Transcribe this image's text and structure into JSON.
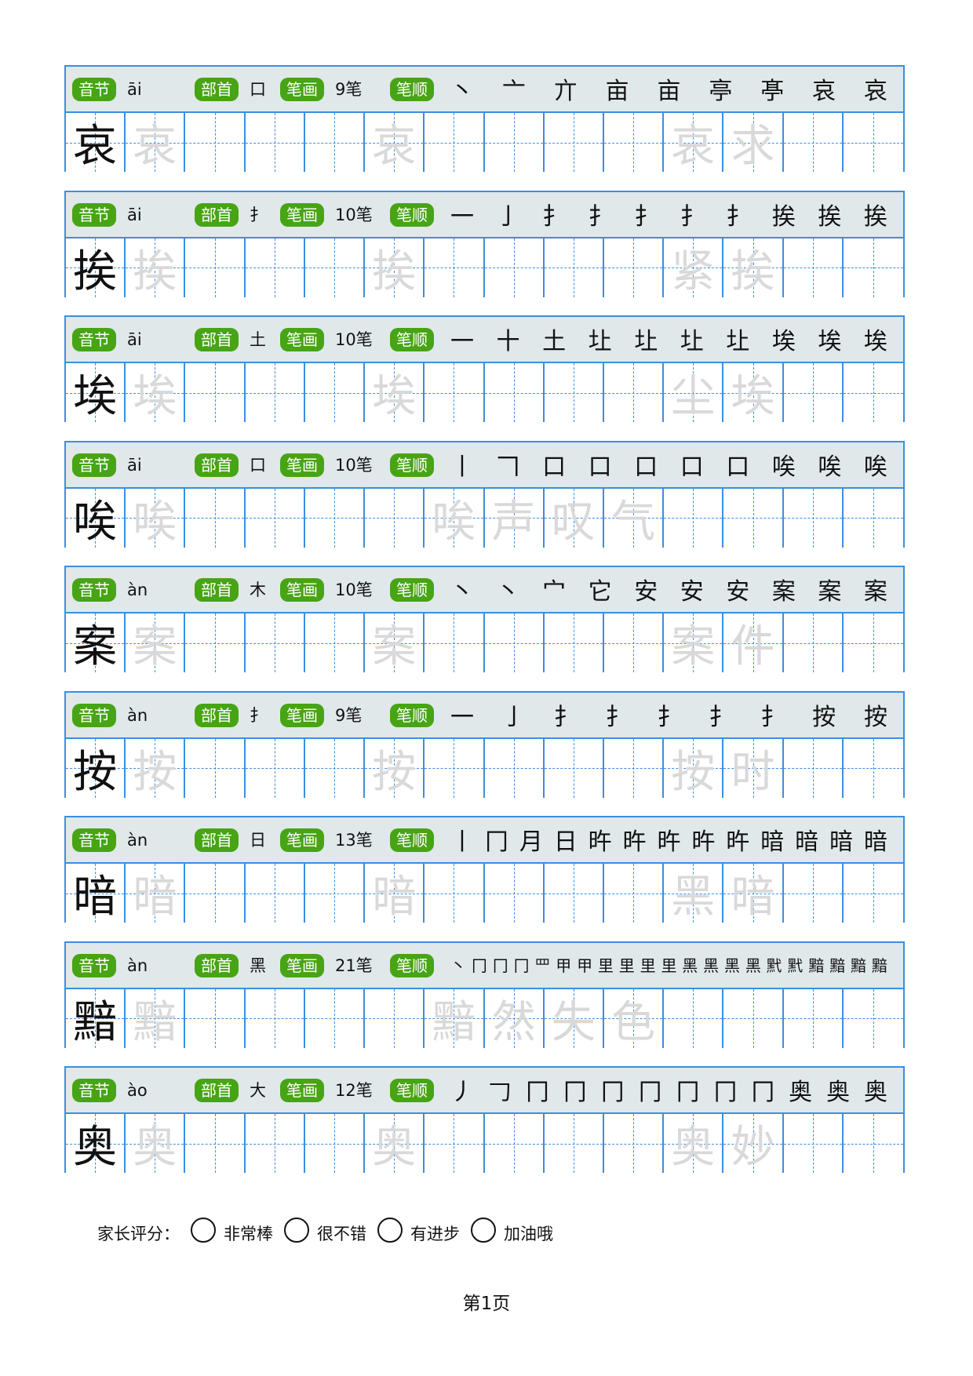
{
  "labels": {
    "syllable": "音节",
    "radical": "部首",
    "stroke_count": "笔画",
    "stroke_order": "笔顺"
  },
  "colors": {
    "pill": "#47a414",
    "grid": "#3c8ee0",
    "header_bg": "#e0e8ea",
    "trace": "#d9d9d9"
  },
  "rows": [
    {
      "char": "哀",
      "pinyin": "āi",
      "radical": "口",
      "strokes": "9笔",
      "order": [
        "丶",
        "亠",
        "亣",
        "亩",
        "亩",
        "亭",
        "𠅘",
        "哀",
        "哀"
      ],
      "cells": {
        "1": "哀",
        "5": "哀",
        "10": "哀",
        "11": "求"
      }
    },
    {
      "char": "挨",
      "pinyin": "āi",
      "radical": "扌",
      "strokes": "10笔",
      "order": [
        "一",
        "亅",
        "扌",
        "扌",
        "扌",
        "扌",
        "扌",
        "挨",
        "挨",
        "挨"
      ],
      "cells": {
        "1": "挨",
        "5": "挨",
        "10": "紧",
        "11": "挨"
      }
    },
    {
      "char": "埃",
      "pinyin": "āi",
      "radical": "土",
      "strokes": "10笔",
      "order": [
        "一",
        "十",
        "土",
        "圵",
        "圵",
        "圵",
        "圵",
        "埃",
        "埃",
        "埃"
      ],
      "cells": {
        "1": "埃",
        "5": "埃",
        "10": "尘",
        "11": "埃"
      }
    },
    {
      "char": "唉",
      "pinyin": "āi",
      "radical": "口",
      "strokes": "10笔",
      "order": [
        "丨",
        "𠃍",
        "口",
        "口",
        "口",
        "口",
        "口",
        "唉",
        "唉",
        "唉"
      ],
      "cells": {
        "1": "唉",
        "6": "唉",
        "7": "声",
        "8": "叹",
        "9": "气"
      }
    },
    {
      "char": "案",
      "pinyin": "àn",
      "radical": "木",
      "strokes": "10笔",
      "order": [
        "丶",
        "丶",
        "宀",
        "它",
        "安",
        "安",
        "安",
        "案",
        "案",
        "案"
      ],
      "cells": {
        "1": "案",
        "5": "案",
        "10": "案",
        "11": "件"
      }
    },
    {
      "char": "按",
      "pinyin": "àn",
      "radical": "扌",
      "strokes": "9笔",
      "order": [
        "一",
        "亅",
        "扌",
        "扌",
        "扌",
        "扌",
        "扌",
        "按",
        "按"
      ],
      "cells": {
        "1": "按",
        "5": "按",
        "10": "按",
        "11": "时"
      }
    },
    {
      "char": "暗",
      "pinyin": "àn",
      "radical": "日",
      "strokes": "13笔",
      "order": [
        "丨",
        "冂",
        "月",
        "日",
        "旿",
        "旿",
        "旿",
        "旿",
        "旿",
        "暗",
        "暗",
        "暗",
        "暗"
      ],
      "cells": {
        "1": "暗",
        "5": "暗",
        "10": "黑",
        "11": "暗"
      }
    },
    {
      "char": "黯",
      "pinyin": "àn",
      "radical": "黑",
      "strokes": "21笔",
      "order": [
        "丶",
        "冂",
        "冂",
        "冂",
        "罒",
        "甲",
        "甲",
        "里",
        "里",
        "里",
        "里",
        "黑",
        "黑",
        "黑",
        "黑",
        "黓",
        "黓",
        "黯",
        "黯",
        "黯",
        "黯"
      ],
      "cells": {
        "1": "黯",
        "6": "黯",
        "7": "然",
        "8": "失",
        "9": "色"
      }
    },
    {
      "char": "奥",
      "pinyin": "ào",
      "radical": "大",
      "strokes": "12笔",
      "order": [
        "丿",
        "𠃌",
        "冂",
        "冂",
        "冂",
        "冂",
        "冂",
        "冂",
        "冂",
        "奥",
        "奥",
        "奥"
      ],
      "cells": {
        "1": "奥",
        "5": "奥",
        "10": "奥",
        "11": "妙"
      }
    }
  ],
  "rating": {
    "label": "家长评分：",
    "options": [
      "非常棒",
      "很不错",
      "有进步",
      "加油哦"
    ]
  },
  "page_number": "第1页"
}
